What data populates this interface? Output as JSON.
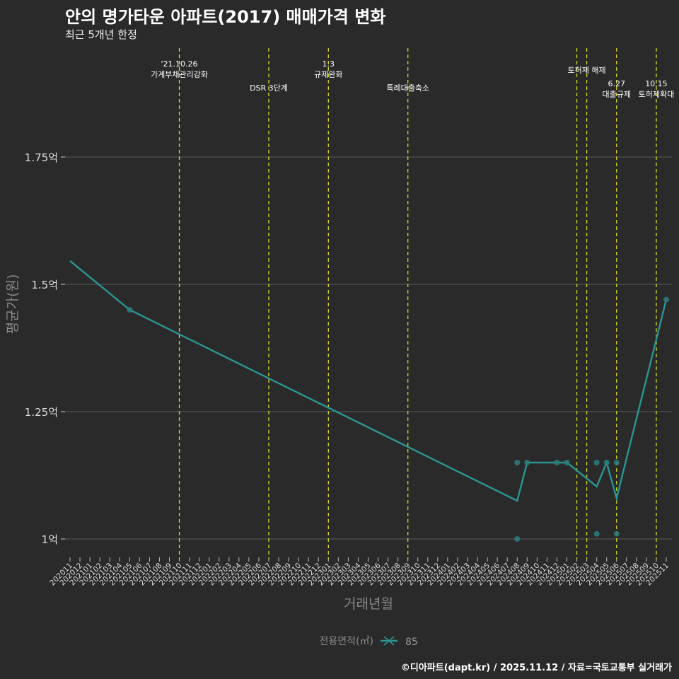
{
  "title": "안의 명가타운 아파트(2017) 매매가격 변화",
  "subtitle": "최근 5개년 한정",
  "caption": "©디아파트(dapt.kr) / 2025.11.12 / 자료=국토교통부 실거래가",
  "colors": {
    "background": "#2b2a2b",
    "line": "#2a9591",
    "point": "#2a7f7b",
    "vline": "#d4dc2a",
    "grid": "#5a5a5a",
    "text": "#dddddd"
  },
  "chart_data": {
    "type": "line",
    "title": "안의 명가타운 아파트(2017) 매매가격 변화",
    "xlabel": "거래년월",
    "ylabel": "평균가(원)",
    "ylim": [
      0.95,
      1.95
    ],
    "yticks": [
      {
        "v": 1.0,
        "label": "1억"
      },
      {
        "v": 1.25,
        "label": "1.25억"
      },
      {
        "v": 1.5,
        "label": "1.5억"
      },
      {
        "v": 1.75,
        "label": "1.75억"
      }
    ],
    "categories": [
      "202011",
      "202012",
      "202101",
      "202102",
      "202103",
      "202104",
      "202105",
      "202106",
      "202107",
      "202108",
      "202109",
      "202110",
      "202111",
      "202112",
      "202201",
      "202202",
      "202203",
      "202204",
      "202205",
      "202206",
      "202207",
      "202208",
      "202209",
      "202210",
      "202211",
      "202212",
      "202301",
      "202302",
      "202303",
      "202304",
      "202305",
      "202306",
      "202307",
      "202308",
      "202309",
      "202310",
      "202311",
      "202312",
      "202401",
      "202402",
      "202403",
      "202404",
      "202405",
      "202406",
      "202407",
      "202408",
      "202409",
      "202410",
      "202411",
      "202412",
      "202501",
      "202502",
      "202503",
      "202504",
      "202505",
      "202506",
      "202507",
      "202508",
      "202509",
      "202510",
      "202511"
    ],
    "legend": {
      "title": "전용면적(㎡)",
      "entries": [
        "85"
      ],
      "position": "bottom"
    },
    "series": [
      {
        "name": "85",
        "line": [
          {
            "x": "202011",
            "y": 1.546
          },
          {
            "x": "202105",
            "y": 1.45
          },
          {
            "x": "202408",
            "y": 1.075
          },
          {
            "x": "202409",
            "y": 1.15
          },
          {
            "x": "202412",
            "y": 1.15
          },
          {
            "x": "202501",
            "y": 1.15
          },
          {
            "x": "202504",
            "y": 1.103
          },
          {
            "x": "202505",
            "y": 1.15
          },
          {
            "x": "202506",
            "y": 1.08
          },
          {
            "x": "202511",
            "y": 1.47
          }
        ],
        "points": [
          {
            "x": "202105",
            "y": 1.45
          },
          {
            "x": "202408",
            "y": 1.15
          },
          {
            "x": "202408",
            "y": 1.0
          },
          {
            "x": "202409",
            "y": 1.15
          },
          {
            "x": "202412",
            "y": 1.15
          },
          {
            "x": "202501",
            "y": 1.15
          },
          {
            "x": "202504",
            "y": 1.15
          },
          {
            "x": "202504",
            "y": 1.01
          },
          {
            "x": "202505",
            "y": 1.15
          },
          {
            "x": "202506",
            "y": 1.15
          },
          {
            "x": "202506",
            "y": 1.01
          },
          {
            "x": "202511",
            "y": 1.47
          }
        ]
      }
    ],
    "annotations": [
      {
        "x": "202110",
        "lines": [
          "'21.10.26",
          "가계부채관리강화"
        ],
        "row": 0
      },
      {
        "x": "202207",
        "lines": [
          "DSR 3단계"
        ],
        "row": 2
      },
      {
        "x": "202301",
        "lines": [
          "1.3",
          "규제완화"
        ],
        "row": 0
      },
      {
        "x": "202309",
        "lines": [
          "특례대출축소"
        ],
        "row": 2
      },
      {
        "x": "202502",
        "lines": [],
        "row": 0
      },
      {
        "x": "202503",
        "lines": [
          "토허제 해제"
        ],
        "row": 1
      },
      {
        "x": "202506",
        "lines": [
          "6.27",
          "대출규제"
        ],
        "row": 3
      },
      {
        "x": "202510",
        "lines": [
          "10.15",
          "토허제확대"
        ],
        "row": 3
      }
    ]
  }
}
